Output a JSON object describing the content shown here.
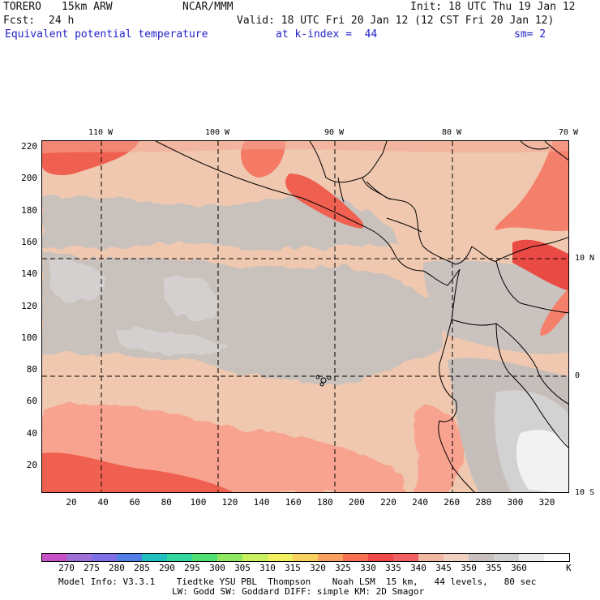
{
  "header": {
    "model": "TORERO",
    "resolution": "15km ARW",
    "center": "NCAR/MMM",
    "init": "Init: 18 UTC Thu 19 Jan 12",
    "fcst_label": "Fcst:",
    "fcst_value": "24 h",
    "valid": "Valid: 18 UTC Fri 20 Jan 12 (12 CST Fri 20 Jan 12)",
    "field": "Equivalent potential temperature",
    "level": "at k-index =  44",
    "smoothing": "sm= 2"
  },
  "map": {
    "lon_labels": [
      "110 W",
      "100 W",
      "90 W",
      "80 W",
      "70 W"
    ],
    "lat_labels": [
      "10 N",
      "0",
      "10 S"
    ],
    "y_ticks": [
      "220",
      "200",
      "180",
      "160",
      "140",
      "120",
      "100",
      "80",
      "60",
      "40",
      "20"
    ],
    "x_ticks": [
      "20",
      "40",
      "60",
      "80",
      "100",
      "120",
      "140",
      "160",
      "180",
      "200",
      "220",
      "240",
      "260",
      "280",
      "300",
      "320"
    ],
    "colors": {
      "base_tan": "#f0c8b0",
      "cool_gray": "#c9c1bc",
      "light_gray": "#d2cfcf",
      "salmon": "#f8a38f",
      "red": "#f06050",
      "deep_red": "#e84848",
      "white": "#f4f4f4"
    }
  },
  "colorbar": {
    "labels": [
      "270",
      "275",
      "280",
      "285",
      "290",
      "295",
      "300",
      "305",
      "310",
      "315",
      "320",
      "325",
      "330",
      "335",
      "340",
      "345",
      "350",
      "355",
      "360"
    ],
    "unit": "K",
    "colors": [
      "#c850c8",
      "#a070d8",
      "#8070e8",
      "#5080e8",
      "#20c0c0",
      "#30d8a0",
      "#50e070",
      "#90e860",
      "#c8f060",
      "#f0f060",
      "#f8d060",
      "#f8a060",
      "#f87050",
      "#f04848",
      "#f06060",
      "#f0b8a0",
      "#f0d0c0",
      "#c8c0bc",
      "#d0d0d0",
      "#ececec",
      "#ffffff"
    ]
  },
  "footer": {
    "line1": "Model Info: V3.3.1    Tiedtke YSU PBL  Thompson    Noah LSM  15 km,   44 levels,   80 sec",
    "line2": "LW: Godd SW: Goddard DIFF: simple KM: 2D Smagor"
  }
}
